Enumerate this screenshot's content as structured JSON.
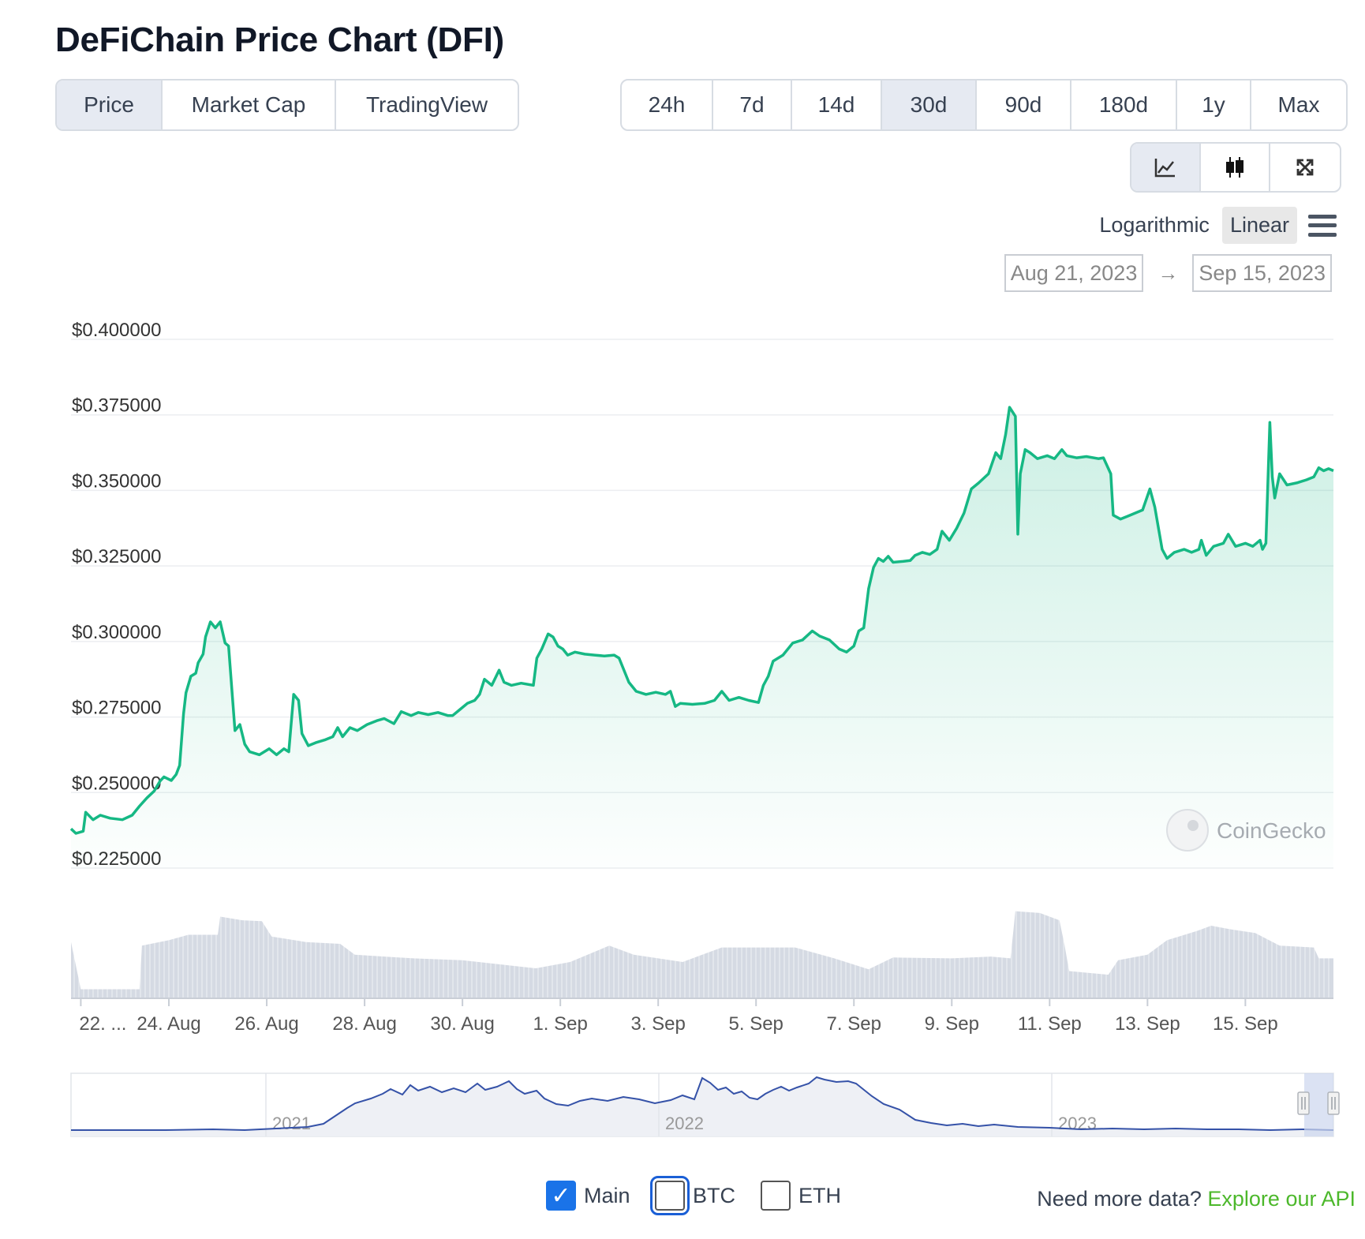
{
  "title": "DeFiChain Price Chart (DFI)",
  "view_tabs": [
    {
      "label": "Price",
      "active": true
    },
    {
      "label": "Market Cap",
      "active": false
    },
    {
      "label": "TradingView",
      "active": false
    }
  ],
  "range_tabs": [
    {
      "label": "24h",
      "active": false
    },
    {
      "label": "7d",
      "active": false
    },
    {
      "label": "14d",
      "active": false
    },
    {
      "label": "30d",
      "active": true
    },
    {
      "label": "90d",
      "active": false
    },
    {
      "label": "180d",
      "active": false
    },
    {
      "label": "1y",
      "active": false
    },
    {
      "label": "Max",
      "active": false
    }
  ],
  "chart_type_icons": [
    {
      "icon": "line-chart-icon",
      "active": true
    },
    {
      "icon": "candlestick-icon",
      "active": false
    },
    {
      "icon": "expand-icon",
      "active": false
    }
  ],
  "scale": {
    "log_label": "Logarithmic",
    "linear_label": "Linear",
    "active": "Linear"
  },
  "date_range": {
    "from": "Aug 21, 2023",
    "to": "Sep 15, 2023",
    "arrow": "→"
  },
  "watermark": "CoinGecko",
  "legend": [
    {
      "label": "Main",
      "checked": true
    },
    {
      "label": "BTC",
      "checked": false
    },
    {
      "label": "ETH",
      "checked": false
    }
  ],
  "api": {
    "text": "Need more data?",
    "link": "Explore our API"
  },
  "colors": {
    "line": "#16b884",
    "fill": "#16b884",
    "volume": "#d5dae3",
    "navigator": "#3552a8",
    "accent_link": "#4cb82b"
  },
  "chart_data": {
    "type": "area",
    "title": "",
    "xlabel": "",
    "ylabel": "",
    "ylim": [
      0.225,
      0.4
    ],
    "y_ticks": [
      0.4,
      0.375,
      0.35,
      0.325,
      0.3,
      0.275,
      0.25,
      0.225
    ],
    "y_tick_labels": [
      "$0.400000",
      "$0.375000",
      "$0.350000",
      "$0.325000",
      "$0.300000",
      "$0.275000",
      "$0.250000",
      "$0.225000"
    ],
    "x_range": [
      0,
      25.8
    ],
    "x_ticks": [
      0.2,
      2,
      4,
      6,
      8,
      10,
      12,
      14,
      16,
      18,
      20,
      22,
      24
    ],
    "x_tick_labels": [
      "22. ...",
      "24. Aug",
      "26. Aug",
      "28. Aug",
      "30. Aug",
      "1. Sep",
      "3. Sep",
      "5. Sep",
      "7. Sep",
      "9. Sep",
      "11. Sep",
      "13. Sep",
      "15. Sep"
    ],
    "grid": true,
    "series": [
      {
        "values": [
          [
            0,
            0.238
          ],
          [
            0.1,
            0.2365
          ],
          [
            0.25,
            0.2372
          ],
          [
            0.3,
            0.2435
          ],
          [
            0.45,
            0.241
          ],
          [
            0.6,
            0.2425
          ],
          [
            0.8,
            0.2415
          ],
          [
            1.05,
            0.241
          ],
          [
            1.25,
            0.2425
          ],
          [
            1.4,
            0.2455
          ],
          [
            1.55,
            0.2482
          ],
          [
            1.7,
            0.2505
          ],
          [
            1.82,
            0.2538
          ],
          [
            1.9,
            0.2552
          ],
          [
            2.05,
            0.254
          ],
          [
            2.15,
            0.256
          ],
          [
            2.22,
            0.259
          ],
          [
            2.3,
            0.276
          ],
          [
            2.35,
            0.283
          ],
          [
            2.45,
            0.2885
          ],
          [
            2.55,
            0.2895
          ],
          [
            2.6,
            0.293
          ],
          [
            2.7,
            0.2958
          ],
          [
            2.75,
            0.3015
          ],
          [
            2.85,
            0.3065
          ],
          [
            2.95,
            0.3045
          ],
          [
            3.05,
            0.3065
          ],
          [
            3.15,
            0.2995
          ],
          [
            3.22,
            0.2985
          ],
          [
            3.35,
            0.2705
          ],
          [
            3.45,
            0.2725
          ],
          [
            3.55,
            0.266
          ],
          [
            3.65,
            0.2635
          ],
          [
            3.85,
            0.2625
          ],
          [
            4.05,
            0.2645
          ],
          [
            4.2,
            0.2625
          ],
          [
            4.35,
            0.2645
          ],
          [
            4.45,
            0.2635
          ],
          [
            4.55,
            0.2825
          ],
          [
            4.65,
            0.2805
          ],
          [
            4.72,
            0.2695
          ],
          [
            4.85,
            0.2655
          ],
          [
            5.0,
            0.2665
          ],
          [
            5.2,
            0.2675
          ],
          [
            5.35,
            0.2685
          ],
          [
            5.45,
            0.2715
          ],
          [
            5.55,
            0.2685
          ],
          [
            5.7,
            0.2715
          ],
          [
            5.85,
            0.2705
          ],
          [
            6.05,
            0.2725
          ],
          [
            6.25,
            0.2738
          ],
          [
            6.4,
            0.2745
          ],
          [
            6.6,
            0.2728
          ],
          [
            6.75,
            0.2768
          ],
          [
            6.95,
            0.2755
          ],
          [
            7.1,
            0.2765
          ],
          [
            7.3,
            0.2758
          ],
          [
            7.5,
            0.2765
          ],
          [
            7.7,
            0.2755
          ],
          [
            7.8,
            0.2755
          ],
          [
            7.95,
            0.2775
          ],
          [
            8.1,
            0.2795
          ],
          [
            8.25,
            0.2805
          ],
          [
            8.35,
            0.2825
          ],
          [
            8.45,
            0.2875
          ],
          [
            8.6,
            0.2855
          ],
          [
            8.75,
            0.2905
          ],
          [
            8.85,
            0.2865
          ],
          [
            9.0,
            0.2855
          ],
          [
            9.2,
            0.2862
          ],
          [
            9.45,
            0.2855
          ],
          [
            9.52,
            0.2945
          ],
          [
            9.62,
            0.2975
          ],
          [
            9.75,
            0.3025
          ],
          [
            9.85,
            0.3015
          ],
          [
            9.95,
            0.2985
          ],
          [
            10.05,
            0.2975
          ],
          [
            10.15,
            0.2955
          ],
          [
            10.3,
            0.2965
          ],
          [
            10.5,
            0.2958
          ],
          [
            10.7,
            0.2955
          ],
          [
            10.9,
            0.2952
          ],
          [
            11.1,
            0.2955
          ],
          [
            11.2,
            0.2945
          ],
          [
            11.4,
            0.2865
          ],
          [
            11.55,
            0.2835
          ],
          [
            11.75,
            0.2825
          ],
          [
            11.95,
            0.2832
          ],
          [
            12.15,
            0.2825
          ],
          [
            12.25,
            0.2835
          ],
          [
            12.35,
            0.2785
          ],
          [
            12.45,
            0.2795
          ],
          [
            12.7,
            0.2792
          ],
          [
            12.95,
            0.2795
          ],
          [
            13.15,
            0.2805
          ],
          [
            13.3,
            0.2835
          ],
          [
            13.45,
            0.2805
          ],
          [
            13.65,
            0.2815
          ],
          [
            13.85,
            0.2805
          ],
          [
            14.05,
            0.2798
          ],
          [
            14.15,
            0.2855
          ],
          [
            14.25,
            0.2885
          ],
          [
            14.35,
            0.2935
          ],
          [
            14.55,
            0.2955
          ],
          [
            14.75,
            0.2995
          ],
          [
            14.95,
            0.3005
          ],
          [
            15.15,
            0.3035
          ],
          [
            15.3,
            0.3018
          ],
          [
            15.5,
            0.3005
          ],
          [
            15.7,
            0.2975
          ],
          [
            15.85,
            0.2965
          ],
          [
            16.0,
            0.2985
          ],
          [
            16.1,
            0.3035
          ],
          [
            16.2,
            0.3045
          ],
          [
            16.3,
            0.3175
          ],
          [
            16.4,
            0.3245
          ],
          [
            16.5,
            0.3275
          ],
          [
            16.6,
            0.3265
          ],
          [
            16.7,
            0.3282
          ],
          [
            16.8,
            0.3262
          ],
          [
            17.0,
            0.3265
          ],
          [
            17.15,
            0.3268
          ],
          [
            17.25,
            0.3285
          ],
          [
            17.4,
            0.3295
          ],
          [
            17.55,
            0.3288
          ],
          [
            17.7,
            0.3305
          ],
          [
            17.8,
            0.3365
          ],
          [
            17.95,
            0.3335
          ],
          [
            18.1,
            0.3375
          ],
          [
            18.25,
            0.3425
          ],
          [
            18.4,
            0.3505
          ],
          [
            18.55,
            0.3525
          ],
          [
            18.75,
            0.3555
          ],
          [
            18.9,
            0.3625
          ],
          [
            19.0,
            0.3605
          ],
          [
            19.1,
            0.3685
          ],
          [
            19.18,
            0.3775
          ],
          [
            19.3,
            0.3745
          ],
          [
            19.35,
            0.3355
          ],
          [
            19.4,
            0.3555
          ],
          [
            19.5,
            0.3635
          ],
          [
            19.6,
            0.3625
          ],
          [
            19.75,
            0.3605
          ],
          [
            19.95,
            0.3615
          ],
          [
            20.1,
            0.3605
          ],
          [
            20.25,
            0.3635
          ],
          [
            20.35,
            0.3615
          ],
          [
            20.55,
            0.3608
          ],
          [
            20.75,
            0.3612
          ],
          [
            21.0,
            0.3605
          ],
          [
            21.1,
            0.3608
          ],
          [
            21.25,
            0.3555
          ],
          [
            21.3,
            0.3418
          ],
          [
            21.45,
            0.3405
          ],
          [
            21.6,
            0.3415
          ],
          [
            21.75,
            0.3425
          ],
          [
            21.9,
            0.3435
          ],
          [
            22.05,
            0.3505
          ],
          [
            22.15,
            0.3445
          ],
          [
            22.3,
            0.3305
          ],
          [
            22.4,
            0.3275
          ],
          [
            22.55,
            0.3295
          ],
          [
            22.75,
            0.3305
          ],
          [
            22.9,
            0.3295
          ],
          [
            23.05,
            0.3305
          ],
          [
            23.1,
            0.3335
          ],
          [
            23.2,
            0.3285
          ],
          [
            23.35,
            0.3315
          ],
          [
            23.55,
            0.3325
          ],
          [
            23.65,
            0.3355
          ],
          [
            23.8,
            0.3315
          ],
          [
            24.0,
            0.3325
          ],
          [
            24.15,
            0.3315
          ],
          [
            24.3,
            0.3335
          ],
          [
            24.35,
            0.3305
          ],
          [
            24.42,
            0.3325
          ],
          [
            24.5,
            0.3725
          ],
          [
            24.55,
            0.3545
          ],
          [
            24.6,
            0.3475
          ],
          [
            24.7,
            0.3555
          ],
          [
            24.85,
            0.3518
          ],
          [
            25.05,
            0.3525
          ],
          [
            25.25,
            0.3535
          ],
          [
            25.4,
            0.3545
          ],
          [
            25.5,
            0.3575
          ],
          [
            25.6,
            0.3565
          ],
          [
            25.7,
            0.3572
          ],
          [
            25.8,
            0.3565
          ]
        ]
      }
    ],
    "volume_relative": [
      [
        0,
        0.62
      ],
      [
        0.2,
        0.1
      ],
      [
        1.4,
        0.1
      ],
      [
        1.45,
        0.58
      ],
      [
        2.0,
        0.64
      ],
      [
        2.4,
        0.7
      ],
      [
        3.0,
        0.7
      ],
      [
        3.05,
        0.9
      ],
      [
        3.5,
        0.86
      ],
      [
        3.9,
        0.85
      ],
      [
        4.1,
        0.68
      ],
      [
        4.8,
        0.62
      ],
      [
        5.5,
        0.6
      ],
      [
        5.8,
        0.48
      ],
      [
        7.0,
        0.44
      ],
      [
        8.0,
        0.42
      ],
      [
        9.0,
        0.36
      ],
      [
        9.5,
        0.33
      ],
      [
        10.2,
        0.4
      ],
      [
        11.0,
        0.58
      ],
      [
        11.5,
        0.48
      ],
      [
        12.5,
        0.4
      ],
      [
        13.3,
        0.56
      ],
      [
        14.0,
        0.56
      ],
      [
        14.8,
        0.56
      ],
      [
        15.6,
        0.44
      ],
      [
        16.3,
        0.32
      ],
      [
        16.8,
        0.45
      ],
      [
        18.0,
        0.44
      ],
      [
        18.8,
        0.46
      ],
      [
        19.2,
        0.44
      ],
      [
        19.3,
        0.96
      ],
      [
        19.8,
        0.94
      ],
      [
        20.2,
        0.86
      ],
      [
        20.3,
        0.6
      ],
      [
        20.4,
        0.3
      ],
      [
        21.2,
        0.26
      ],
      [
        21.4,
        0.42
      ],
      [
        22.0,
        0.48
      ],
      [
        22.4,
        0.64
      ],
      [
        23.0,
        0.74
      ],
      [
        23.3,
        0.8
      ],
      [
        23.7,
        0.76
      ],
      [
        24.2,
        0.72
      ],
      [
        24.7,
        0.58
      ],
      [
        25.4,
        0.56
      ],
      [
        25.5,
        0.44
      ],
      [
        25.8,
        0.44
      ]
    ],
    "navigator": {
      "tick_labels": [
        "2021",
        "2022",
        "2023"
      ]
    }
  }
}
